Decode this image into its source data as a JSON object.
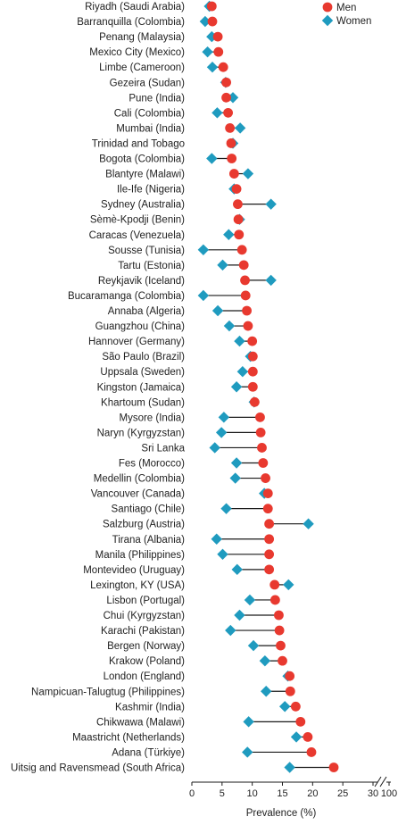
{
  "chart_data": {
    "type": "dumbbell",
    "xlabel": "Prevalence (%)",
    "xlim": [
      0,
      30
    ],
    "xticks": [
      0,
      5,
      10,
      15,
      20,
      25,
      30
    ],
    "x_break_tick": 100,
    "legend_position": "top-right",
    "series": [
      {
        "name": "Men",
        "color": "#e8392f",
        "marker": "circle"
      },
      {
        "name": "Women",
        "color": "#1f9bbf",
        "marker": "diamond"
      }
    ],
    "categories": [
      "Riyadh (Saudi Arabia)",
      "Barranquilla (Colombia)",
      "Penang (Malaysia)",
      "Mexico City (Mexico)",
      "Limbe (Cameroon)",
      "Gezeira (Sudan)",
      "Pune (India)",
      "Cali (Colombia)",
      "Mumbai (India)",
      "Trinidad and Tobago",
      "Bogota (Colombia)",
      "Blantyre (Malawi)",
      "Ile-Ife (Nigeria)",
      "Sydney (Australia)",
      "Sèmè-Kpodji (Benin)",
      "Caracas (Venezuela)",
      "Sousse (Tunisia)",
      "Tartu (Estonia)",
      "Reykjavik (Iceland)",
      "Bucaramanga (Colombia)",
      "Annaba (Algeria)",
      "Guangzhou (China)",
      "Hannover (Germany)",
      "São Paulo (Brazil)",
      "Uppsala (Sweden)",
      "Kingston (Jamaica)",
      "Khartoum (Sudan)",
      "Mysore (India)",
      "Naryn (Kyrgyzstan)",
      "Sri Lanka",
      "Fes (Morocco)",
      "Medellin (Colombia)",
      "Vancouver (Canada)",
      "Santiago (Chile)",
      "Salzburg (Austria)",
      "Tirana (Albania)",
      "Manila (Philippines)",
      "Montevideo (Uruguay)",
      "Lexington, KY (USA)",
      "Lisbon (Portugal)",
      "Chui (Kyrgyzstan)",
      "Karachi (Pakistan)",
      "Bergen (Norway)",
      "Krakow (Poland)",
      "London (England)",
      "Nampicuan-Talugtug (Philippines)",
      "Kashmir (India)",
      "Chikwawa (Malawi)",
      "Maastricht (Netherlands)",
      "Adana (Türkiye)",
      "Uitsig and Ravensmead (South Africa)"
    ],
    "men": [
      3.3,
      3.4,
      4.3,
      4.4,
      5.2,
      5.7,
      5.7,
      6.0,
      6.3,
      6.5,
      6.6,
      7.0,
      7.4,
      7.6,
      7.7,
      7.8,
      8.3,
      8.6,
      8.8,
      8.9,
      9.1,
      9.3,
      10.0,
      10.1,
      10.1,
      10.1,
      10.4,
      11.3,
      11.4,
      11.6,
      11.8,
      12.2,
      12.6,
      12.6,
      12.8,
      12.8,
      12.8,
      12.8,
      13.7,
      13.8,
      14.4,
      14.5,
      14.7,
      15.0,
      16.2,
      16.3,
      17.2,
      18.0,
      19.2,
      19.8,
      23.5
    ],
    "women": [
      2.9,
      2.2,
      3.3,
      2.6,
      3.4,
      5.6,
      6.8,
      4.2,
      8.0,
      6.8,
      3.3,
      9.3,
      7.0,
      13.1,
      7.9,
      6.1,
      1.9,
      5.1,
      13.1,
      1.9,
      4.3,
      6.2,
      7.9,
      9.7,
      8.4,
      7.4,
      10.3,
      5.3,
      4.9,
      3.8,
      7.4,
      7.2,
      12.0,
      5.7,
      19.3,
      4.1,
      5.1,
      7.5,
      16.0,
      9.6,
      7.9,
      6.4,
      10.2,
      12.1,
      15.9,
      12.3,
      15.4,
      9.4,
      17.3,
      9.2,
      16.2
    ]
  }
}
